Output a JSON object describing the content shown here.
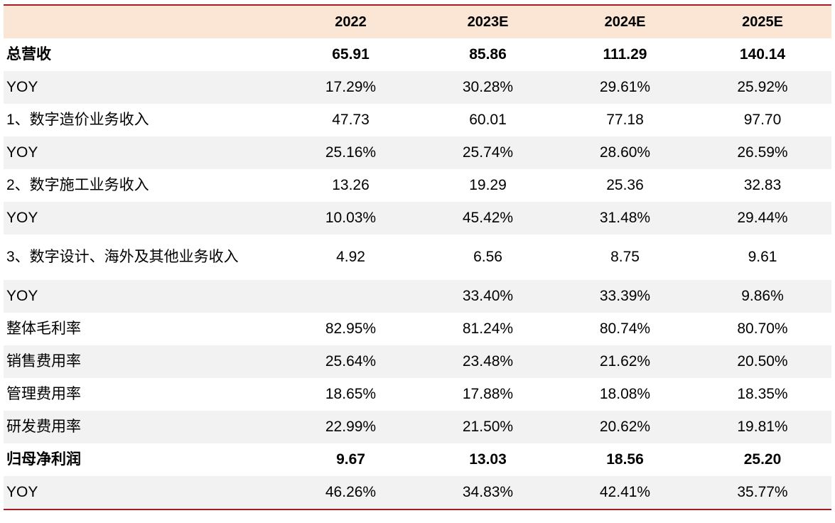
{
  "table": {
    "columns": [
      "2022",
      "2023E",
      "2024E",
      "2025E"
    ],
    "rows": [
      {
        "label": "总营收",
        "values": [
          "65.91",
          "85.86",
          "111.29",
          "140.14"
        ]
      },
      {
        "label": "YOY",
        "values": [
          "17.29%",
          "30.28%",
          "29.61%",
          "25.92%"
        ]
      },
      {
        "label": " 1、数字造价业务收入",
        "values": [
          "47.73",
          "60.01",
          "77.18",
          "97.70"
        ]
      },
      {
        "label": "YOY",
        "values": [
          "25.16%",
          "25.74%",
          "28.60%",
          "26.59%"
        ]
      },
      {
        "label": " 2、数字施工业务收入",
        "values": [
          "13.26",
          "19.29",
          "25.36",
          "32.83"
        ]
      },
      {
        "label": "YOY",
        "values": [
          "10.03%",
          "45.42%",
          "31.48%",
          "29.44%"
        ]
      },
      {
        "label": " 3、数字设计、海外及其他业务收入",
        "values": [
          "4.92",
          "6.56",
          "8.75",
          "9.61"
        ]
      },
      {
        "label": "YOY",
        "values": [
          "",
          "33.40%",
          "33.39%",
          "9.86%"
        ]
      },
      {
        "label": "整体毛利率",
        "values": [
          "82.95%",
          "81.24%",
          "80.74%",
          "80.70%"
        ]
      },
      {
        "label": "销售费用率",
        "values": [
          "25.64%",
          "23.48%",
          "21.62%",
          "20.50%"
        ]
      },
      {
        "label": "管理费用率",
        "values": [
          "18.65%",
          "17.88%",
          "18.08%",
          "18.35%"
        ]
      },
      {
        "label": "研发费用率",
        "values": [
          "22.99%",
          "21.50%",
          "20.62%",
          "19.81%"
        ]
      },
      {
        "label": "归母净利润",
        "values": [
          "9.67",
          "13.03",
          "18.56",
          "25.20"
        ]
      },
      {
        "label": "YOY",
        "values": [
          "46.26%",
          "34.83%",
          "42.41%",
          "35.77%"
        ]
      }
    ]
  },
  "colors": {
    "rule": "#a31f24",
    "header_bg": "#fbe6d6",
    "shade_bg": "#f2f2f2"
  }
}
